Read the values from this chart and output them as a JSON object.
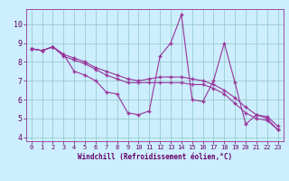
{
  "xlabel": "Windchill (Refroidissement éolien,°C)",
  "background_color": "#cceeff",
  "grid_color": "#99cccc",
  "line_color": "#993399",
  "xlim": [
    -0.5,
    23.5
  ],
  "ylim": [
    3.8,
    10.8
  ],
  "yticks": [
    4,
    5,
    6,
    7,
    8,
    9,
    10
  ],
  "xticks": [
    0,
    1,
    2,
    3,
    4,
    5,
    6,
    7,
    8,
    9,
    10,
    11,
    12,
    13,
    14,
    15,
    16,
    17,
    18,
    19,
    20,
    21,
    22,
    23
  ],
  "series": [
    [
      8.7,
      8.6,
      8.8,
      8.4,
      7.5,
      7.3,
      7.0,
      6.4,
      6.3,
      5.3,
      5.2,
      5.4,
      8.3,
      9.0,
      10.5,
      6.0,
      5.9,
      7.0,
      9.0,
      6.9,
      4.7,
      5.2,
      5.0,
      4.4
    ],
    [
      8.7,
      8.6,
      8.8,
      8.4,
      8.2,
      8.0,
      7.7,
      7.5,
      7.3,
      7.1,
      7.0,
      7.1,
      7.2,
      7.2,
      7.2,
      7.1,
      7.0,
      6.8,
      6.5,
      6.1,
      5.6,
      5.2,
      5.1,
      4.6
    ],
    [
      8.7,
      8.6,
      8.8,
      8.3,
      8.1,
      7.9,
      7.6,
      7.3,
      7.1,
      6.9,
      6.9,
      6.9,
      6.9,
      6.9,
      6.9,
      6.8,
      6.8,
      6.6,
      6.3,
      5.8,
      5.3,
      5.0,
      4.9,
      4.4
    ]
  ]
}
